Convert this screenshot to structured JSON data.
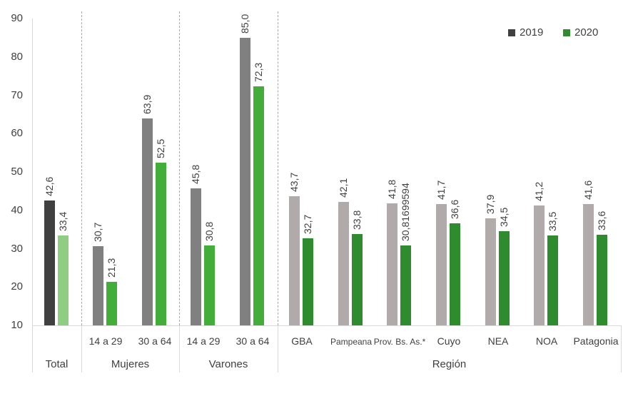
{
  "chart_data": {
    "type": "bar",
    "title": "",
    "xlabel": "",
    "ylabel": "",
    "ylim": [
      10,
      90
    ],
    "yticks": [
      10,
      20,
      30,
      40,
      50,
      60,
      70,
      80,
      90
    ],
    "legend": {
      "position": "top-right",
      "entries": [
        {
          "name": "2019",
          "color": "#404040"
        },
        {
          "name": "2020",
          "color": "#2e8b2e"
        }
      ]
    },
    "groups": [
      {
        "name": "Total",
        "categories": [
          "Total"
        ]
      },
      {
        "name": "Mujeres",
        "categories": [
          "14 a 29",
          "30 a 64"
        ]
      },
      {
        "name": "Varones",
        "categories": [
          "14 a 29",
          "30 a 64"
        ]
      },
      {
        "name": "Región",
        "categories": [
          "GBA",
          "Pampeana",
          "Prov. Bs. As.*",
          "Cuyo",
          "NEA",
          "NOA",
          "Patagonia"
        ]
      }
    ],
    "categories": [
      "Total",
      "Mujeres 14 a 29",
      "Mujeres 30 a 64",
      "Varones 14 a 29",
      "Varones 30 a 64",
      "GBA",
      "Pampeana",
      "Prov. Bs. As.*",
      "Cuyo",
      "NEA",
      "NOA",
      "Patagonia"
    ],
    "series": [
      {
        "name": "2019",
        "values": [
          42.6,
          30.7,
          63.9,
          45.8,
          85.0,
          43.7,
          42.1,
          41.8,
          41.7,
          37.9,
          41.2,
          41.6
        ],
        "labels": [
          "42,6",
          "30,7",
          "63,9",
          "45,8",
          "85,0",
          "43,7",
          "42,1",
          "41,8",
          "41,7",
          "37,9",
          "41,2",
          "41,6"
        ]
      },
      {
        "name": "2020",
        "values": [
          33.4,
          21.3,
          52.5,
          30.8,
          72.3,
          32.7,
          33.8,
          30.81699594,
          36.6,
          34.5,
          33.5,
          33.6
        ],
        "labels": [
          "33,4",
          "21,3",
          "52,5",
          "30,8",
          "72,3",
          "32,7",
          "33,8",
          "30,81699594",
          "36,6",
          "34,5",
          "33,5",
          "33,6"
        ]
      }
    ]
  },
  "axis": {
    "y": [
      "10",
      "20",
      "30",
      "40",
      "50",
      "60",
      "70",
      "80",
      "90"
    ]
  },
  "cats": [
    "",
    "14 a 29",
    "30 a 64",
    "14 a 29",
    "30 a 64",
    "GBA",
    "Pampeana",
    "Prov. Bs. As.*",
    "Cuyo",
    "NEA",
    "NOA",
    "Patagonia"
  ],
  "groups": [
    "Total",
    "Mujeres",
    "Varones",
    "Región"
  ],
  "legend": {
    "y2019": "2019",
    "y2020": "2020"
  }
}
